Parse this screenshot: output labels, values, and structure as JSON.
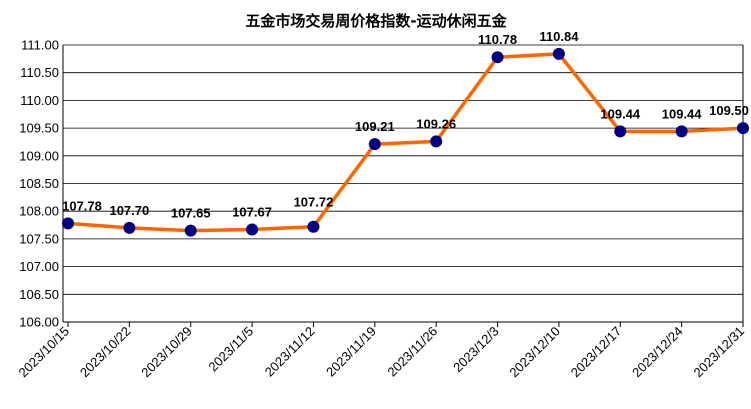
{
  "chart_data": {
    "type": "line",
    "title": "五金市场交易周价格指数-运动休闲五金",
    "categories": [
      "2023/10/15",
      "2023/10/22",
      "2023/10/29",
      "2023/11/5",
      "2023/11/12",
      "2023/11/19",
      "2023/11/26",
      "2023/12/3",
      "2023/12/10",
      "2023/12/17",
      "2023/12/24",
      "2023/12/31"
    ],
    "values": [
      107.78,
      107.7,
      107.65,
      107.67,
      107.72,
      109.21,
      109.26,
      110.78,
      110.84,
      109.44,
      109.44,
      109.5
    ],
    "data_labels": [
      "107.78",
      "107.70",
      "107.65",
      "107.67",
      "107.72",
      "109.21",
      "109.26",
      "110.78",
      "110.84",
      "109.44",
      "109.44",
      "109.50"
    ],
    "yticks": [
      "106.00",
      "106.50",
      "107.00",
      "107.50",
      "108.00",
      "108.50",
      "109.00",
      "109.50",
      "110.00",
      "110.50",
      "111.00"
    ],
    "ylim": [
      106,
      111
    ],
    "grid": true,
    "legend": "none",
    "colors": {
      "line": "#FF6600",
      "marker": "#000080"
    }
  }
}
